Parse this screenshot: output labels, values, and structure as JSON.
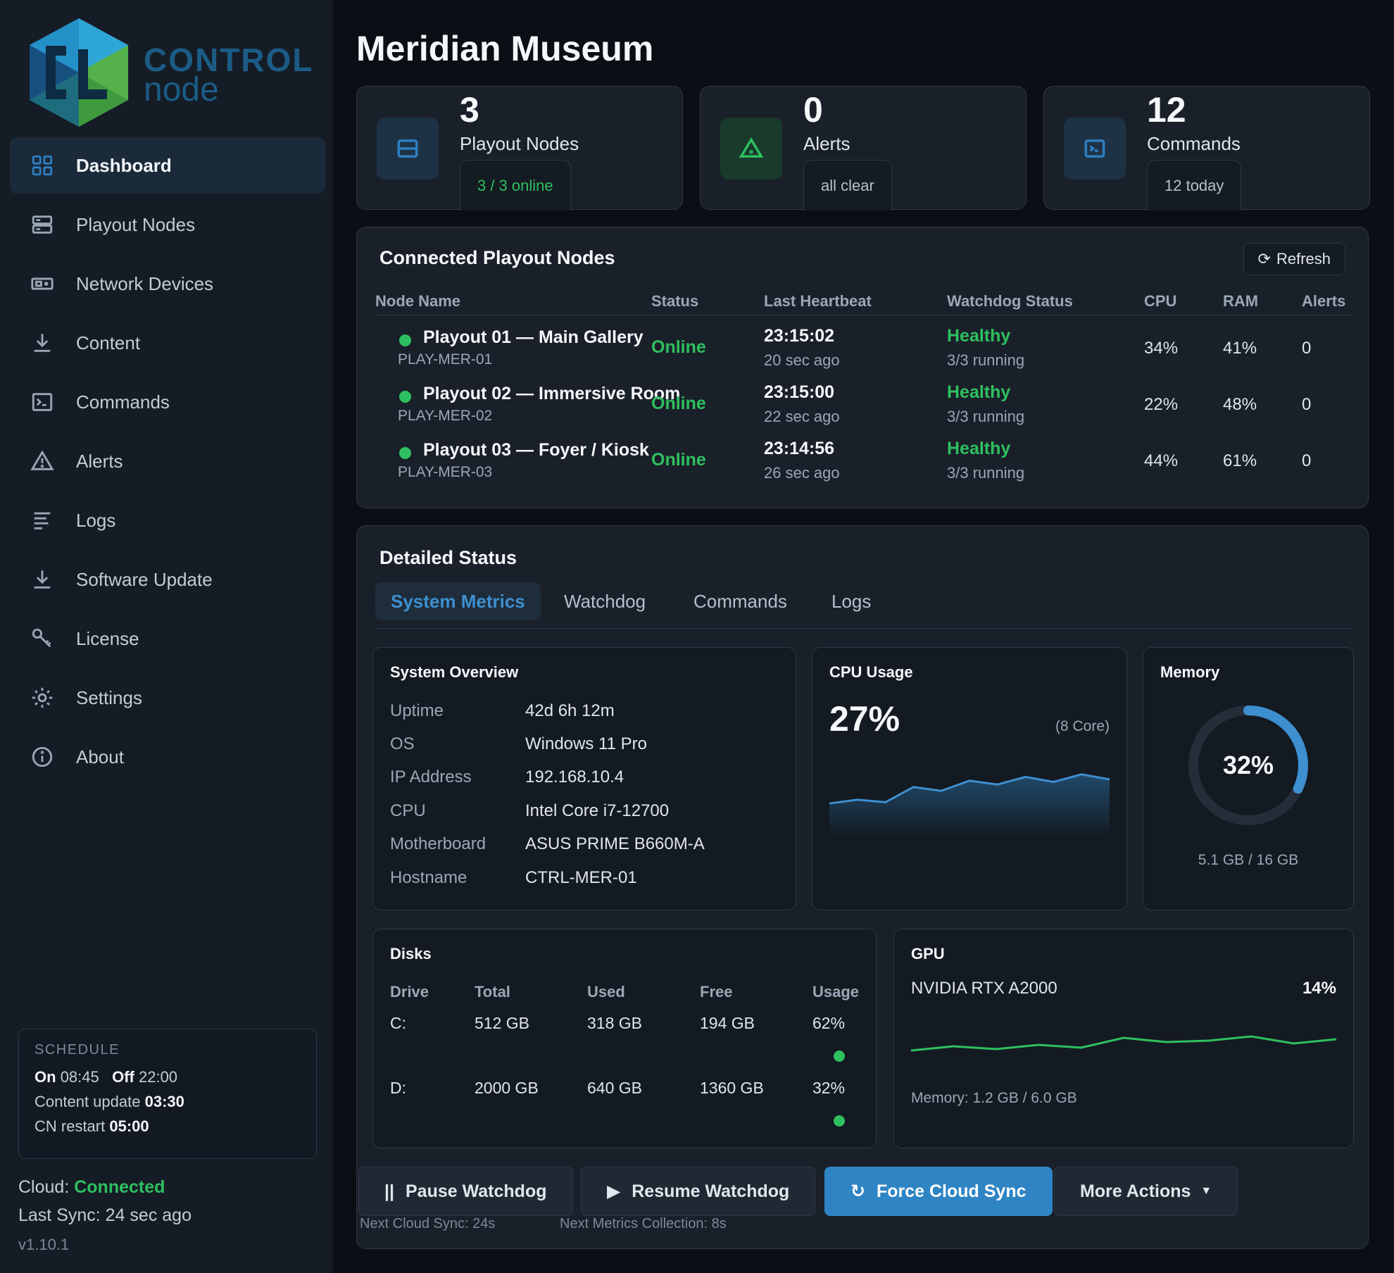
{
  "brand": {
    "line1": "CONTROL",
    "line2": "node"
  },
  "nav": [
    {
      "label": "Dashboard",
      "icon": "grid-icon",
      "active": true
    },
    {
      "label": "Playout Nodes",
      "icon": "server-icon"
    },
    {
      "label": "Network Devices",
      "icon": "network-device-icon"
    },
    {
      "label": "Content",
      "icon": "download-icon"
    },
    {
      "label": "Commands",
      "icon": "terminal-icon"
    },
    {
      "label": "Alerts",
      "icon": "warning-icon"
    },
    {
      "label": "Logs",
      "icon": "lines-icon"
    },
    {
      "label": "Software Update",
      "icon": "download-icon"
    },
    {
      "label": "License",
      "icon": "key-icon"
    },
    {
      "label": "Settings",
      "icon": "gear-icon"
    },
    {
      "label": "About",
      "icon": "info-icon"
    }
  ],
  "schedule": {
    "header": "SCHEDULE",
    "on_label": "On",
    "on_time": "08:45",
    "off_label": "Off",
    "off_time": "22:00",
    "content_label": "Content update",
    "content_time": "03:30",
    "restart_label": "CN restart",
    "restart_time": "05:00"
  },
  "cloud": {
    "label": "Cloud:",
    "status": "Connected",
    "last_sync": "Last Sync: 24 sec ago",
    "version": "v1.10.1"
  },
  "page_title": "Meridian Museum",
  "stats": [
    {
      "value": "3",
      "label": "Playout Nodes",
      "pill": "3 / 3 online",
      "icon": "server-icon"
    },
    {
      "value": "0",
      "label": "Alerts",
      "pill": "all clear",
      "icon": "warning-icon"
    },
    {
      "value": "12",
      "label": "Commands",
      "pill": "12 today",
      "icon": "terminal-icon"
    }
  ],
  "nodes_panel": {
    "title": "Connected Playout Nodes",
    "refresh": "Refresh",
    "headers": [
      "Node Name",
      "Status",
      "Last Heartbeat",
      "Watchdog Status",
      "CPU",
      "RAM",
      "Alerts"
    ],
    "rows": [
      {
        "name": "Playout 01 — Main Gallery",
        "id": "PLAY-MER-01",
        "status": "Online",
        "heartbeat": "23:15:02",
        "ago": "20 sec ago",
        "watchdog": "Healthy",
        "running": "3/3 running",
        "cpu": "34%",
        "ram": "41%",
        "alerts": "0"
      },
      {
        "name": "Playout 02 — Immersive Room",
        "id": "PLAY-MER-02",
        "status": "Online",
        "heartbeat": "23:15:00",
        "ago": "22 sec ago",
        "watchdog": "Healthy",
        "running": "3/3 running",
        "cpu": "22%",
        "ram": "48%",
        "alerts": "0"
      },
      {
        "name": "Playout 03 — Foyer / Kiosk",
        "id": "PLAY-MER-03",
        "status": "Online",
        "heartbeat": "23:14:56",
        "ago": "26 sec ago",
        "watchdog": "Healthy",
        "running": "3/3 running",
        "cpu": "44%",
        "ram": "61%",
        "alerts": "0"
      }
    ]
  },
  "detail": {
    "title": "Detailed Status",
    "tabs": [
      "System Metrics",
      "Watchdog",
      "Commands",
      "Logs"
    ],
    "system": {
      "title": "System Overview",
      "rows": [
        {
          "k": "Uptime",
          "v": "42d 6h 12m"
        },
        {
          "k": "OS",
          "v": "Windows 11 Pro"
        },
        {
          "k": "IP Address",
          "v": "192.168.10.4"
        },
        {
          "k": "CPU",
          "v": "Intel Core i7-12700"
        },
        {
          "k": "Motherboard",
          "v": "ASUS PRIME B660M-A"
        },
        {
          "k": "Hostname",
          "v": "CTRL-MER-01"
        }
      ]
    },
    "cpu": {
      "title": "CPU Usage",
      "value": "27%",
      "cores": "(8 Core)",
      "history": [
        16,
        19,
        17,
        29,
        26,
        34,
        31,
        37,
        33,
        39,
        35
      ]
    },
    "memory": {
      "title": "Memory",
      "value": "32%",
      "fraction": 0.32,
      "used": "5.1 GB / 16 GB"
    },
    "disks": {
      "title": "Disks",
      "headers": [
        "Drive",
        "Total",
        "Used",
        "Free",
        "Usage"
      ],
      "rows": [
        {
          "drive": "C:",
          "total": "512 GB",
          "used": "318 GB",
          "free": "194 GB",
          "usage": "62%"
        },
        {
          "drive": "D:",
          "total": "2000 GB",
          "used": "640 GB",
          "free": "1360 GB",
          "usage": "32%"
        }
      ]
    },
    "gpu": {
      "title": "GPU",
      "name": "NVIDIA RTX A2000",
      "value": "14%",
      "history": [
        8,
        11,
        9,
        12,
        10,
        17,
        14,
        15,
        18,
        13,
        16
      ],
      "memory": "Memory: 1.2 GB / 6.0 GB"
    },
    "actions": [
      "Pause Watchdog",
      "Resume Watchdog",
      "Force Cloud Sync",
      "More Actions"
    ],
    "next_sync": "Next Cloud Sync: 24s",
    "next_metrics": "Next Metrics Collection: 8s"
  },
  "colors": {
    "accent": "#2f84c4",
    "success": "#2ec05f",
    "panel": "#1a2029",
    "sidebar": "#161c25"
  }
}
